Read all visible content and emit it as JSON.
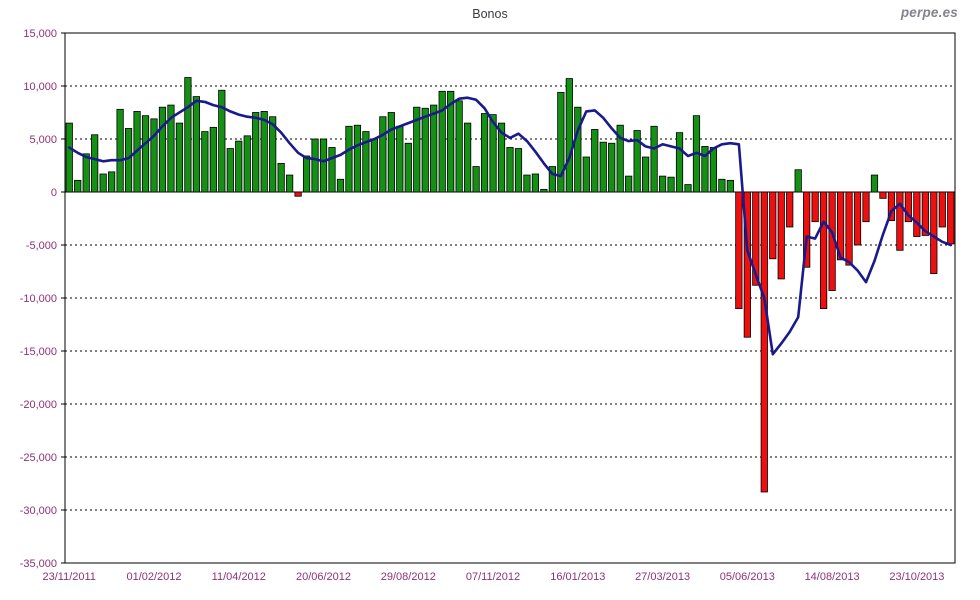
{
  "watermark": "perpe.es",
  "chart_data": {
    "type": "bar",
    "title": "Bonos",
    "subtitle": "",
    "xlabel": "",
    "ylabel": "",
    "ylim": [
      -35000,
      15000
    ],
    "grid": "horizontal-dashed",
    "legend": "none",
    "y_tick_labels": [
      "15,000",
      "10,000",
      "5,000",
      "0",
      "-5,000",
      "-10,000",
      "-15,000",
      "-20,000",
      "-25,000",
      "-30,000",
      "-35,000"
    ],
    "y_tick_values": [
      15000,
      10000,
      5000,
      0,
      -5000,
      -10000,
      -15000,
      -20000,
      -25000,
      -30000,
      -35000
    ],
    "x_tick_labels": [
      {
        "i": 0,
        "label": "23/11/2011"
      },
      {
        "i": 10,
        "label": "01/02/2012"
      },
      {
        "i": 20,
        "label": "11/04/2012"
      },
      {
        "i": 30,
        "label": "20/06/2012"
      },
      {
        "i": 40,
        "label": "29/08/2012"
      },
      {
        "i": 50,
        "label": "07/11/2012"
      },
      {
        "i": 60,
        "label": "16/01/2013"
      },
      {
        "i": 70,
        "label": "27/03/2013"
      },
      {
        "i": 80,
        "label": "05/06/2013"
      },
      {
        "i": 90,
        "label": "14/08/2013"
      },
      {
        "i": 100,
        "label": "23/10/2013"
      }
    ],
    "series": [
      {
        "name": "weekly-value-bars",
        "type": "bar",
        "values": [
          6500,
          1100,
          3600,
          5400,
          1700,
          1900,
          7800,
          6000,
          7600,
          7200,
          6900,
          8000,
          8200,
          6500,
          10800,
          9000,
          5700,
          6100,
          9600,
          4100,
          4800,
          5300,
          7500,
          7600,
          7100,
          2700,
          1600,
          -400,
          3400,
          5000,
          5000,
          4200,
          1200,
          6200,
          6300,
          5700,
          5000,
          7100,
          7500,
          6200,
          4600,
          8000,
          7900,
          8200,
          9500,
          9500,
          8600,
          6500,
          2400,
          7400,
          7300,
          6500,
          4200,
          4100,
          1600,
          1700,
          250,
          2400,
          9400,
          10700,
          8000,
          3300,
          5900,
          4700,
          4600,
          6300,
          1500,
          5800,
          3300,
          6200,
          1500,
          1400,
          5600,
          700,
          7200,
          4300,
          4200,
          1200,
          1100,
          -11000,
          -13700,
          -8800,
          -28300,
          -6300,
          -8200,
          -3300,
          2100,
          -7100,
          -2800,
          -11000,
          -9300,
          -6400,
          -6900,
          -5000,
          -2800,
          1600,
          -600,
          -2700,
          -5500,
          -2800,
          -4200,
          -4100,
          -7700,
          -3300,
          -4900
        ]
      },
      {
        "name": "moving-average-line",
        "type": "line",
        "values": [
          4200,
          3700,
          3300,
          3100,
          2900,
          3000,
          3000,
          3200,
          3900,
          4600,
          5300,
          6200,
          7000,
          7500,
          8000,
          8600,
          8500,
          8200,
          8000,
          7600,
          7300,
          7100,
          7000,
          6800,
          6400,
          5600,
          4600,
          3700,
          3200,
          3100,
          2900,
          3200,
          3500,
          4000,
          4400,
          4700,
          5000,
          5400,
          5900,
          6200,
          6500,
          6800,
          7100,
          7400,
          7700,
          8300,
          8800,
          8900,
          8700,
          7900,
          6600,
          5600,
          5100,
          5500,
          4800,
          3800,
          2700,
          1700,
          1500,
          3200,
          5800,
          7600,
          7700,
          7000,
          6000,
          5100,
          4800,
          4900,
          4300,
          4100,
          4500,
          4300,
          4100,
          3400,
          3700,
          3400,
          4100,
          4500,
          4600,
          4500,
          -5500,
          -7800,
          -10000,
          -15300,
          -14300,
          -13200,
          -11800,
          -4200,
          -4400,
          -2800,
          -3800,
          -6200,
          -6600,
          -7400,
          -8500,
          -6500,
          -4000,
          -1800,
          -1100,
          -2200,
          -2900,
          -3700,
          -4200,
          -4700,
          -5000
        ]
      }
    ],
    "colors": {
      "bar_positive": "#149114",
      "bar_negative": "#ee0f0f",
      "bar_border": "#000000",
      "line": "#1a1a8c",
      "grid": "#000000",
      "axis": "#000000",
      "tick_text": "#8d3277",
      "title_text": "#3a3a42"
    }
  }
}
